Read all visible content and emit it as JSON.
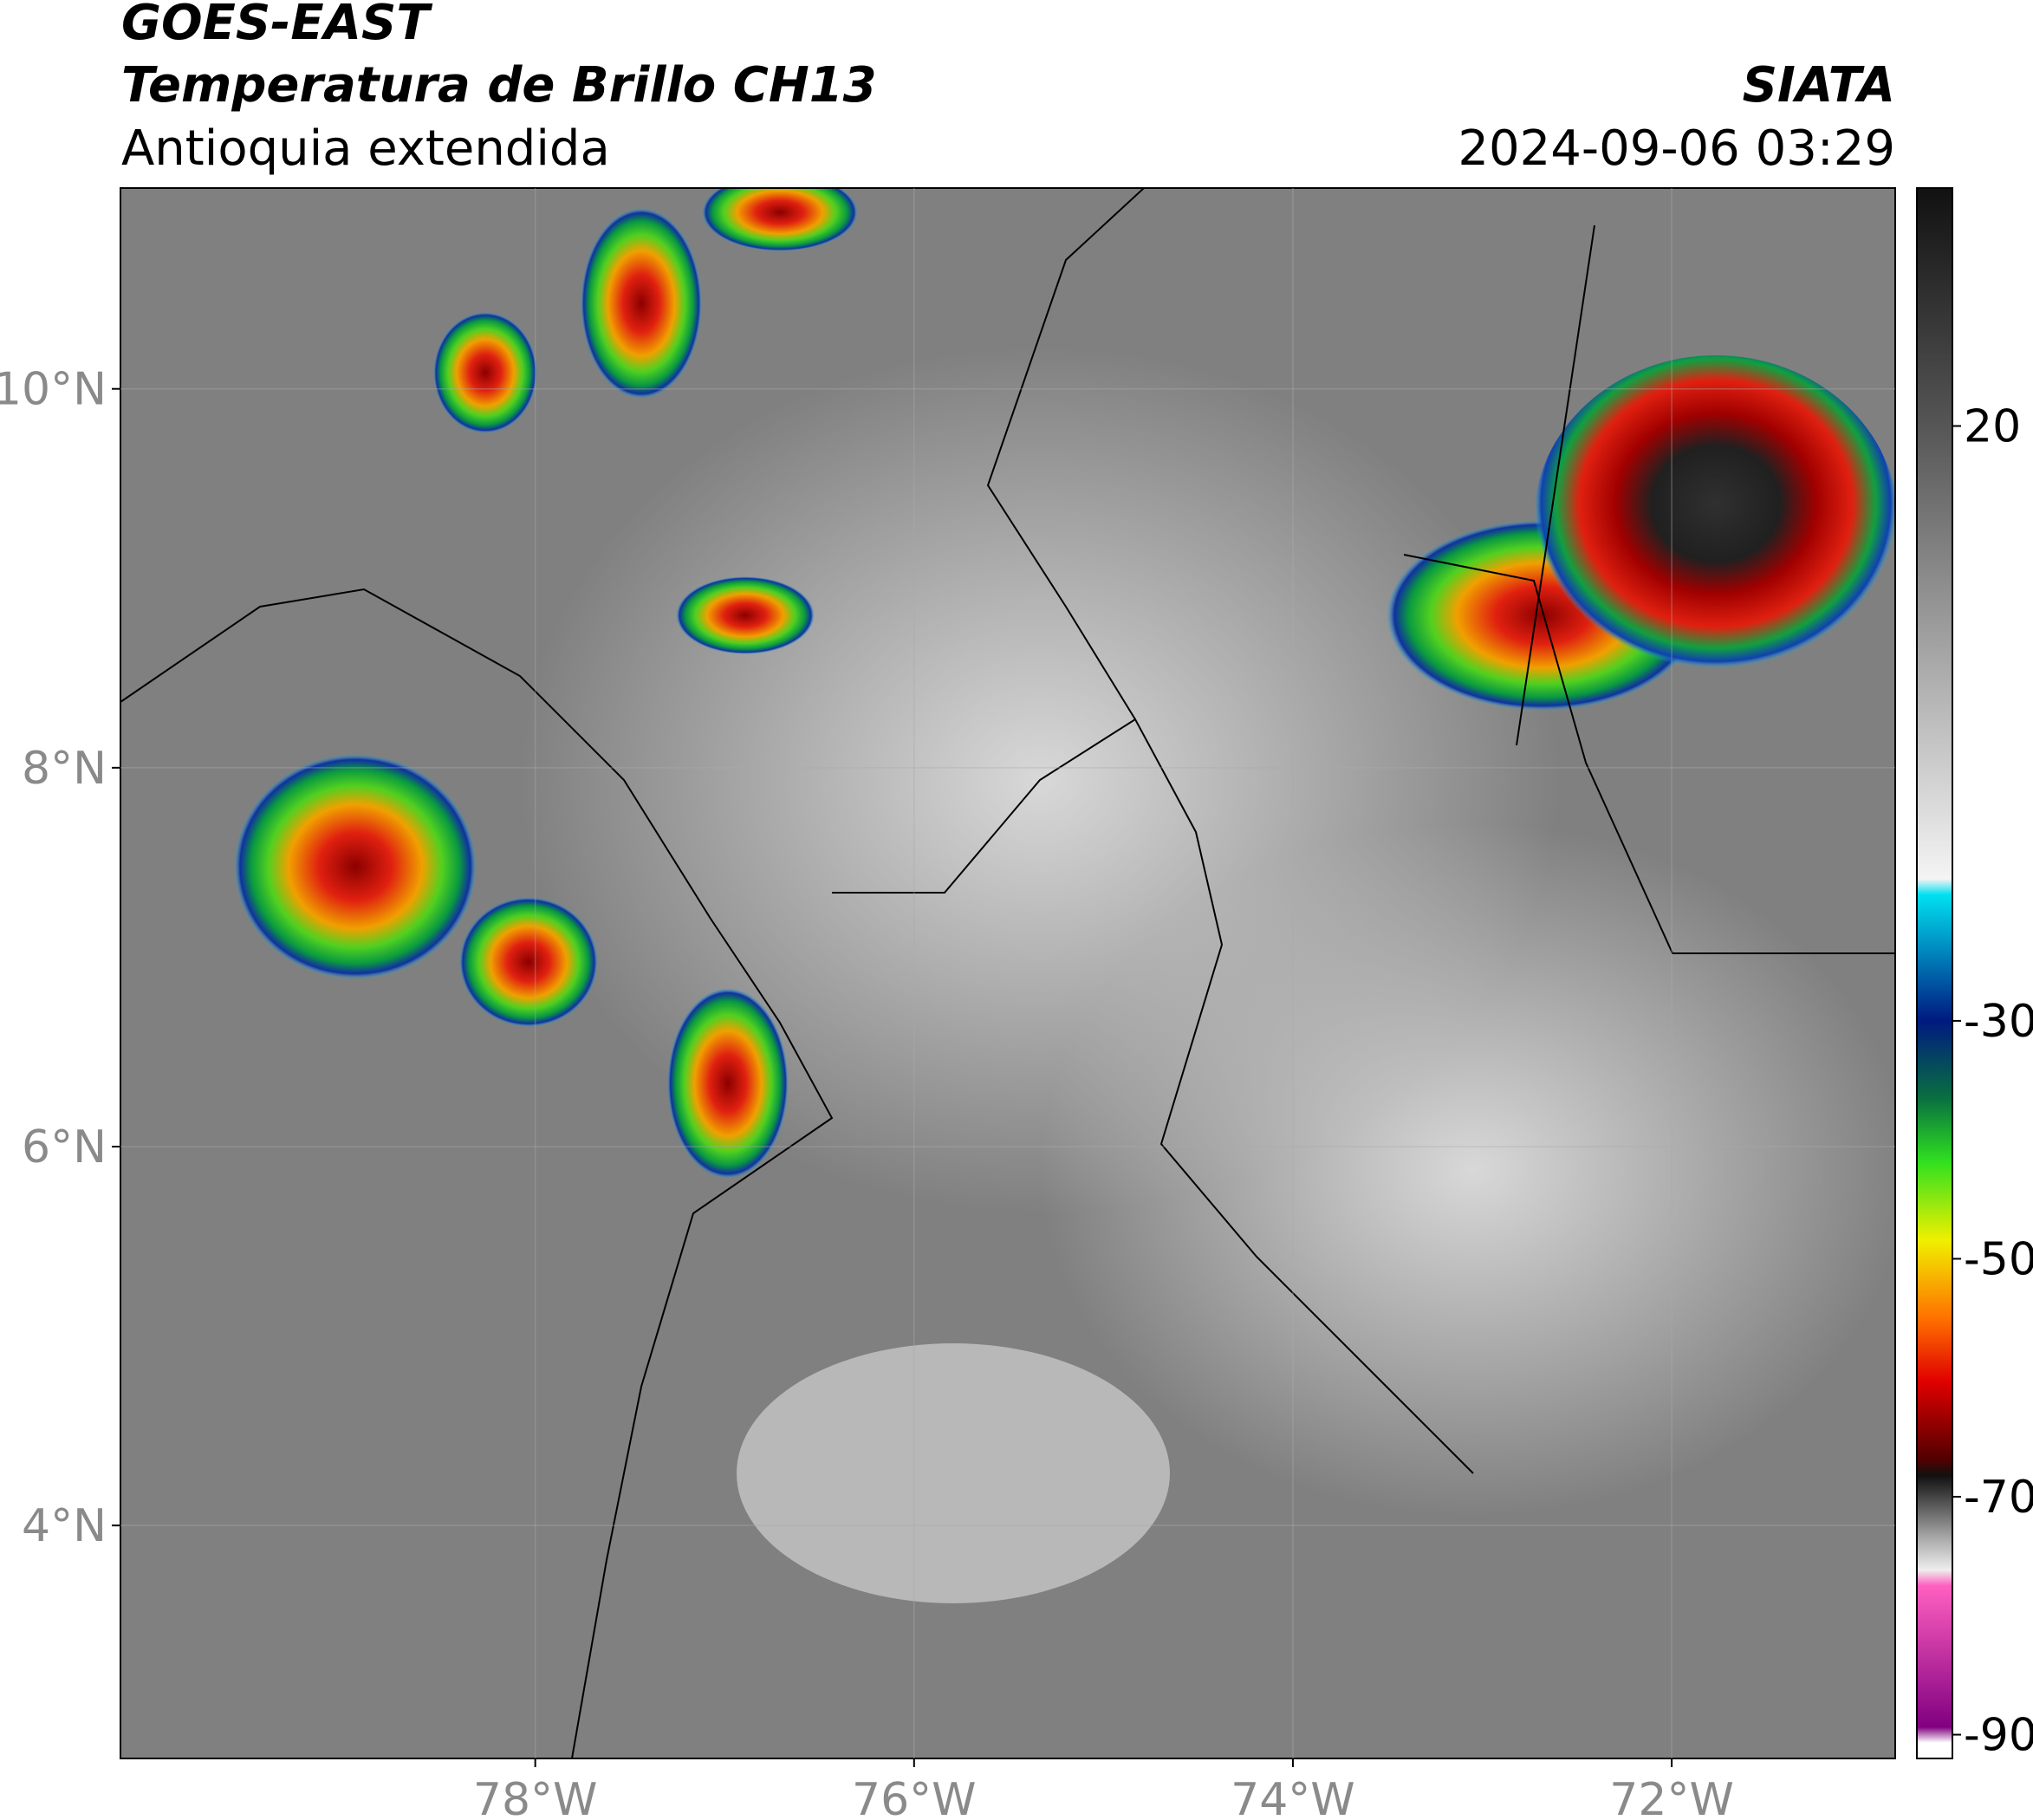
{
  "header": {
    "title": "GOES-EAST",
    "subtitle": "Temperatura de Brillo CH13",
    "region": "Antioquia extendida",
    "source": "SIATA",
    "datetime": "2024-09-06 03:29"
  },
  "map": {
    "xlim": [
      -80.19,
      -70.82
    ],
    "ylim": [
      2.77,
      11.06
    ],
    "xticks": [
      {
        "value": -78,
        "label": "78°W"
      },
      {
        "value": -76,
        "label": "76°W"
      },
      {
        "value": -74,
        "label": "74°W"
      },
      {
        "value": -72,
        "label": "72°W"
      }
    ],
    "yticks": [
      {
        "value": 4,
        "label": "4°N"
      },
      {
        "value": 6,
        "label": "6°N"
      },
      {
        "value": 8,
        "label": "8°N"
      },
      {
        "value": 10,
        "label": "10°N"
      }
    ],
    "grid": true
  },
  "colorbar": {
    "clim": [
      -92,
      40
    ],
    "ticks": [
      20,
      -30,
      -50,
      -70,
      -90
    ]
  }
}
